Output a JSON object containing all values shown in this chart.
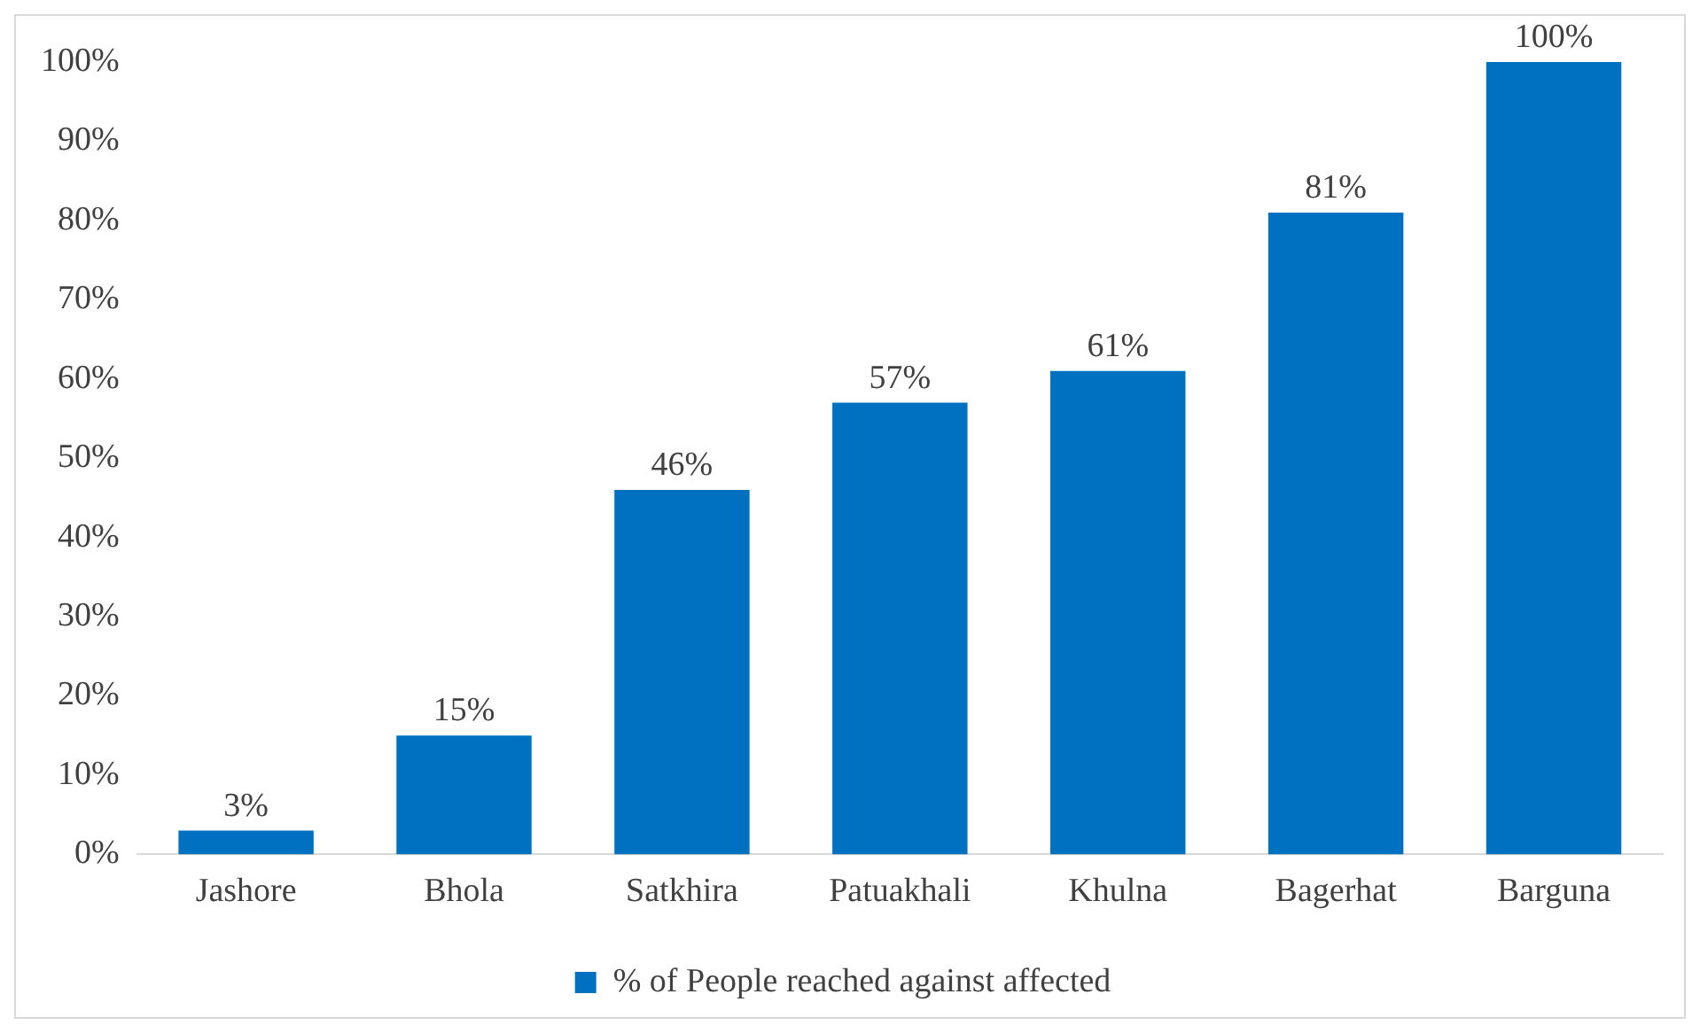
{
  "chart_data": {
    "type": "bar",
    "categories": [
      "Jashore",
      "Bhola",
      "Satkhira",
      "Patuakhali",
      "Khulna",
      "Bagerhat",
      "Barguna"
    ],
    "series": [
      {
        "name": "% of People reached against affected",
        "color": "#0070c0",
        "values": [
          3,
          15,
          46,
          57,
          61,
          81,
          100
        ],
        "value_labels": [
          "3%",
          "15%",
          "46%",
          "57%",
          "61%",
          "81%",
          "100%"
        ]
      }
    ],
    "ylim": [
      0,
      100
    ],
    "yticks": [
      {
        "value": 0,
        "label": "0%"
      },
      {
        "value": 10,
        "label": "10%"
      },
      {
        "value": 20,
        "label": "20%"
      },
      {
        "value": 30,
        "label": "30%"
      },
      {
        "value": 40,
        "label": "40%"
      },
      {
        "value": 50,
        "label": "50%"
      },
      {
        "value": 60,
        "label": "60%"
      },
      {
        "value": 70,
        "label": "70%"
      },
      {
        "value": 80,
        "label": "80%"
      },
      {
        "value": 90,
        "label": "90%"
      },
      {
        "value": 100,
        "label": "100%"
      }
    ],
    "grid": false,
    "legend": "bottom"
  }
}
